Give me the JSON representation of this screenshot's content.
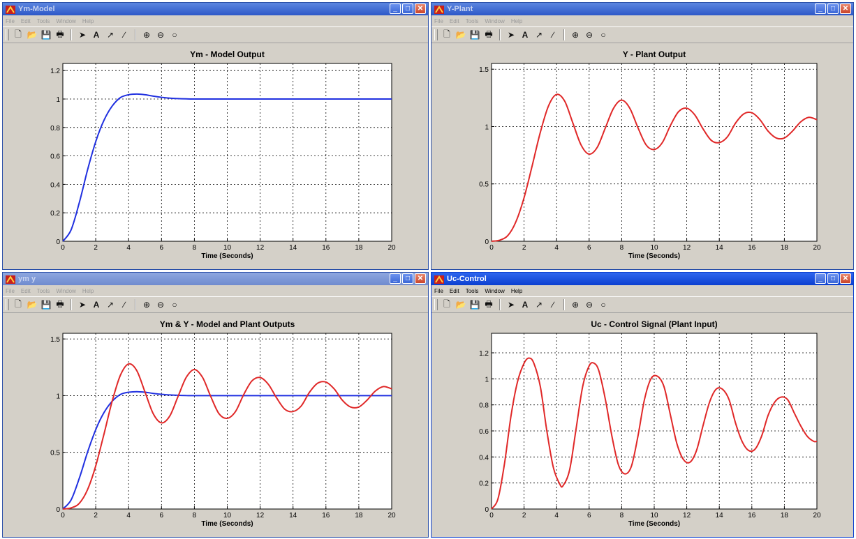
{
  "windows": [
    {
      "title": "Ym-Model",
      "state": "inactive",
      "menu": [
        "File",
        "Edit",
        "Tools",
        "Window",
        "Help"
      ],
      "plot": {
        "title": "Ym - Model Output",
        "xlabel": "Time (Seconds)",
        "xticks": [
          "0",
          "2",
          "4",
          "6",
          "8",
          "10",
          "12",
          "14",
          "16",
          "18",
          "20"
        ],
        "yticks": [
          "0",
          "0.2",
          "0.4",
          "0.6",
          "0.8",
          "1",
          "1.2"
        ]
      }
    },
    {
      "title": "Y-Plant",
      "state": "inactive",
      "menu": [
        "File",
        "Edit",
        "Tools",
        "Window",
        "Help"
      ],
      "plot": {
        "title": "Y - Plant Output",
        "xlabel": "Time (Seconds)",
        "xticks": [
          "0",
          "2",
          "4",
          "6",
          "8",
          "10",
          "12",
          "14",
          "16",
          "18",
          "20"
        ],
        "yticks": [
          "0",
          "0.5",
          "1",
          "1.5"
        ]
      }
    },
    {
      "title": "ym y",
      "state": "inactive",
      "menu": [
        "File",
        "Edit",
        "Tools",
        "Window",
        "Help"
      ],
      "plot": {
        "title": "Ym & Y - Model and Plant Outputs",
        "xlabel": "Time (Seconds)",
        "xticks": [
          "0",
          "2",
          "4",
          "6",
          "8",
          "10",
          "12",
          "14",
          "16",
          "18",
          "20"
        ],
        "yticks": [
          "0",
          "0.5",
          "1",
          "1.5"
        ]
      }
    },
    {
      "title": "Uc-Control",
      "state": "active",
      "menu": [
        "File",
        "Edit",
        "Tools",
        "Window",
        "Help"
      ],
      "plot": {
        "title": "Uc - Control Signal (Plant Input)",
        "xlabel": "Time (Seconds)",
        "xticks": [
          "0",
          "2",
          "4",
          "6",
          "8",
          "10",
          "12",
          "14",
          "16",
          "18",
          "20"
        ],
        "yticks": [
          "0",
          "0.2",
          "0.4",
          "0.6",
          "0.8",
          "1",
          "1.2"
        ]
      }
    }
  ],
  "toolbar_icons": [
    "new-file-icon",
    "open-folder-icon",
    "save-icon",
    "print-icon",
    "arrow-select-icon",
    "text-insert-icon",
    "arrow-insert-icon",
    "line-insert-icon",
    "zoom-in-icon",
    "zoom-out-icon",
    "rotate-icon"
  ],
  "colors": {
    "model": "#2030e0",
    "plant": "#e02828",
    "control": "#e02828",
    "titlebar_active": "#0b3fd0"
  },
  "chart_data": [
    {
      "type": "line",
      "title": "Ym - Model Output",
      "xlabel": "Time (Seconds)",
      "ylabel": "",
      "xlim": [
        0,
        20
      ],
      "ylim": [
        0,
        1.25
      ],
      "grid": true,
      "series": [
        {
          "x": [
            0,
            0.5,
            1,
            1.5,
            2,
            2.5,
            3,
            3.5,
            4,
            4.5,
            5,
            5.5,
            6,
            6.5,
            7,
            7.5,
            8,
            10,
            12,
            14,
            16,
            18,
            20
          ],
          "y": [
            0,
            0.08,
            0.27,
            0.5,
            0.7,
            0.85,
            0.95,
            1.01,
            1.03,
            1.035,
            1.03,
            1.02,
            1.012,
            1.006,
            1.003,
            1.001,
            1.0,
            1.0,
            1.0,
            1.0,
            1.0,
            1.0,
            1.0
          ]
        }
      ]
    },
    {
      "type": "line",
      "title": "Y - Plant Output",
      "xlabel": "Time (Seconds)",
      "ylabel": "",
      "xlim": [
        0,
        20
      ],
      "ylim": [
        0,
        1.55
      ],
      "grid": true,
      "series": [
        {
          "x": [
            0,
            0.5,
            1,
            1.5,
            2,
            2.5,
            3,
            3.5,
            4,
            4.5,
            5,
            5.5,
            6,
            6.5,
            7,
            7.5,
            8,
            8.5,
            9,
            9.5,
            10,
            10.5,
            11,
            11.5,
            12,
            12.5,
            13,
            13.5,
            14,
            14.5,
            15,
            15.5,
            16,
            16.5,
            17,
            17.5,
            18,
            18.5,
            19,
            19.5,
            20
          ],
          "y": [
            0,
            0.01,
            0.05,
            0.17,
            0.38,
            0.66,
            0.95,
            1.18,
            1.28,
            1.22,
            1.03,
            0.84,
            0.76,
            0.82,
            0.99,
            1.16,
            1.23,
            1.16,
            0.99,
            0.84,
            0.8,
            0.86,
            1.01,
            1.13,
            1.16,
            1.1,
            0.98,
            0.88,
            0.86,
            0.91,
            1.03,
            1.11,
            1.12,
            1.06,
            0.96,
            0.9,
            0.9,
            0.96,
            1.04,
            1.08,
            1.06
          ]
        }
      ]
    },
    {
      "type": "line",
      "title": "Ym & Y - Model and Plant Outputs",
      "xlabel": "Time (Seconds)",
      "ylabel": "",
      "xlim": [
        0,
        20
      ],
      "ylim": [
        0,
        1.55
      ],
      "grid": true,
      "series": [
        {
          "x": [
            0,
            0.5,
            1,
            1.5,
            2,
            2.5,
            3,
            3.5,
            4,
            4.5,
            5,
            5.5,
            6,
            6.5,
            7,
            7.5,
            8,
            10,
            12,
            14,
            16,
            18,
            20
          ],
          "y": [
            0,
            0.08,
            0.27,
            0.5,
            0.7,
            0.85,
            0.95,
            1.01,
            1.03,
            1.035,
            1.03,
            1.02,
            1.012,
            1.006,
            1.003,
            1.001,
            1.0,
            1.0,
            1.0,
            1.0,
            1.0,
            1.0,
            1.0
          ]
        },
        {
          "x": [
            0,
            0.5,
            1,
            1.5,
            2,
            2.5,
            3,
            3.5,
            4,
            4.5,
            5,
            5.5,
            6,
            6.5,
            7,
            7.5,
            8,
            8.5,
            9,
            9.5,
            10,
            10.5,
            11,
            11.5,
            12,
            12.5,
            13,
            13.5,
            14,
            14.5,
            15,
            15.5,
            16,
            16.5,
            17,
            17.5,
            18,
            18.5,
            19,
            19.5,
            20
          ],
          "y": [
            0,
            0.01,
            0.05,
            0.17,
            0.38,
            0.66,
            0.95,
            1.18,
            1.28,
            1.22,
            1.03,
            0.84,
            0.76,
            0.82,
            0.99,
            1.16,
            1.23,
            1.16,
            0.99,
            0.84,
            0.8,
            0.86,
            1.01,
            1.13,
            1.16,
            1.1,
            0.98,
            0.88,
            0.86,
            0.91,
            1.03,
            1.11,
            1.12,
            1.06,
            0.96,
            0.9,
            0.9,
            0.96,
            1.04,
            1.08,
            1.06
          ]
        }
      ]
    },
    {
      "type": "line",
      "title": "Uc - Control Signal (Plant Input)",
      "xlabel": "Time (Seconds)",
      "ylabel": "",
      "xlim": [
        0,
        20
      ],
      "ylim": [
        0,
        1.35
      ],
      "grid": true,
      "series": [
        {
          "x": [
            0,
            0.4,
            0.8,
            1.2,
            1.6,
            2.0,
            2.3,
            2.6,
            3.0,
            3.4,
            3.8,
            4.2,
            4.4,
            4.8,
            5.2,
            5.6,
            6.0,
            6.3,
            6.6,
            7.0,
            7.4,
            7.8,
            8.2,
            8.6,
            9.0,
            9.4,
            9.8,
            10.2,
            10.6,
            11.0,
            11.4,
            11.8,
            12.2,
            12.6,
            13.0,
            13.4,
            13.8,
            14.2,
            14.6,
            15.0,
            15.4,
            15.8,
            16.2,
            16.6,
            17.0,
            17.4,
            17.8,
            18.2,
            18.6,
            19.0,
            19.4,
            19.8,
            20
          ],
          "y": [
            0,
            0.08,
            0.35,
            0.72,
            0.98,
            1.12,
            1.16,
            1.12,
            0.94,
            0.6,
            0.32,
            0.19,
            0.18,
            0.3,
            0.62,
            0.94,
            1.1,
            1.12,
            1.06,
            0.84,
            0.56,
            0.34,
            0.27,
            0.33,
            0.56,
            0.84,
            1.0,
            1.02,
            0.94,
            0.72,
            0.5,
            0.38,
            0.36,
            0.45,
            0.64,
            0.82,
            0.92,
            0.92,
            0.84,
            0.66,
            0.52,
            0.45,
            0.46,
            0.56,
            0.72,
            0.82,
            0.86,
            0.84,
            0.74,
            0.64,
            0.56,
            0.52,
            0.52
          ]
        }
      ]
    }
  ]
}
